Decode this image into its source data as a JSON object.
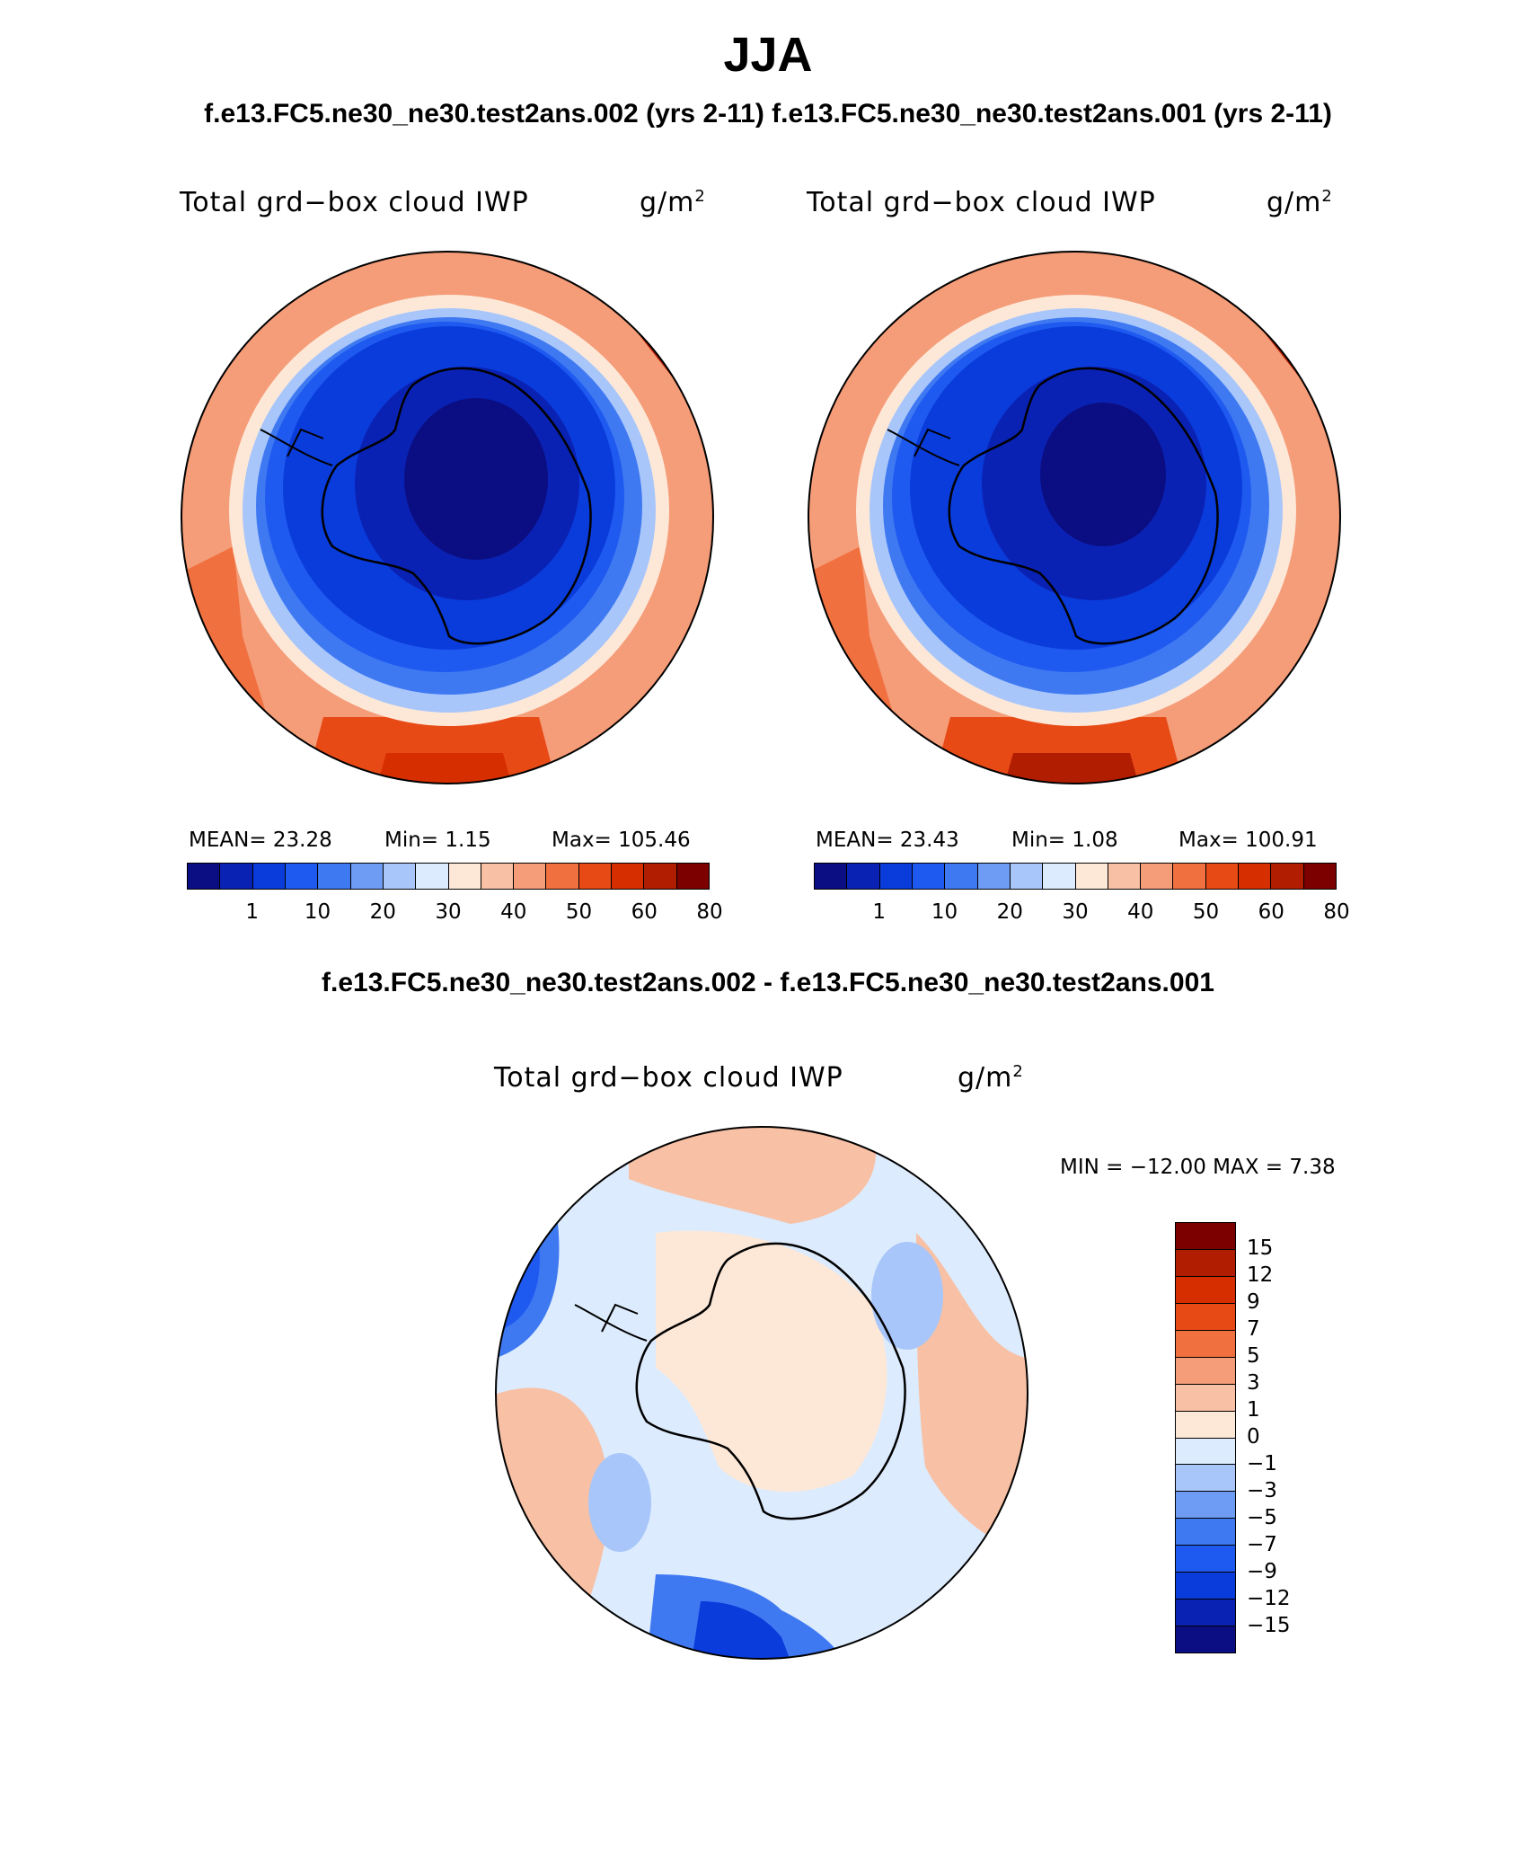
{
  "header": {
    "season": "JJA",
    "cases_title": "f.e13.FC5.ne30_ne30.test2ans.002 (yrs 2-11) f.e13.FC5.ne30_ne30.test2ans.001 (yrs 2-11)",
    "diff_title": "f.e13.FC5.ne30_ne30.test2ans.002 - f.e13.FC5.ne30_ne30.test2ans.001"
  },
  "panels": [
    {
      "variable": "Total grd−box cloud IWP",
      "units": "g/m",
      "units_exp": "2",
      "mean_text": "MEAN=   23.28",
      "min_text": "Min=     1.15",
      "max_text": "Max= 105.46",
      "mean": 23.28,
      "min": 1.15,
      "max": 105.46
    },
    {
      "variable": "Total grd−box cloud IWP",
      "units": "g/m",
      "units_exp": "2",
      "mean_text": "MEAN=   23.43",
      "min_text": "Min=     1.08",
      "max_text": "Max= 100.91",
      "mean": 23.43,
      "min": 1.08,
      "max": 100.91
    },
    {
      "variable": "Total grd−box cloud IWP",
      "units": "g/m",
      "units_exp": "2",
      "minmax_text": "MIN = −12.00  MAX =     7.38",
      "min": -12.0,
      "max": 7.38
    }
  ],
  "colorbar_main": {
    "ticks": [
      "1",
      "10",
      "20",
      "30",
      "40",
      "50",
      "60",
      "80"
    ],
    "colors": [
      "#0b0e82",
      "#0a22b4",
      "#0a3cdc",
      "#1f5af0",
      "#3f79f2",
      "#6e9cf4",
      "#a8c6fa",
      "#dcebfd",
      "#fde8d8",
      "#f8c0a4",
      "#f59c78",
      "#f0703f",
      "#e84a16",
      "#d72e00",
      "#b01d00",
      "#7c0000"
    ]
  },
  "colorbar_diff": {
    "ticks": [
      "15",
      "12",
      "9",
      "7",
      "5",
      "3",
      "1",
      "0",
      "−1",
      "−3",
      "−5",
      "−7",
      "−9",
      "−12",
      "−15"
    ],
    "colors": [
      "#7c0000",
      "#b01d00",
      "#d72e00",
      "#e84a16",
      "#f0703f",
      "#f59c78",
      "#f8c0a4",
      "#fde8d8",
      "#dcebfd",
      "#a8c6fa",
      "#6e9cf4",
      "#3f79f2",
      "#1f5af0",
      "#0a3cdc",
      "#0a22b4",
      "#0b0e82"
    ]
  }
}
